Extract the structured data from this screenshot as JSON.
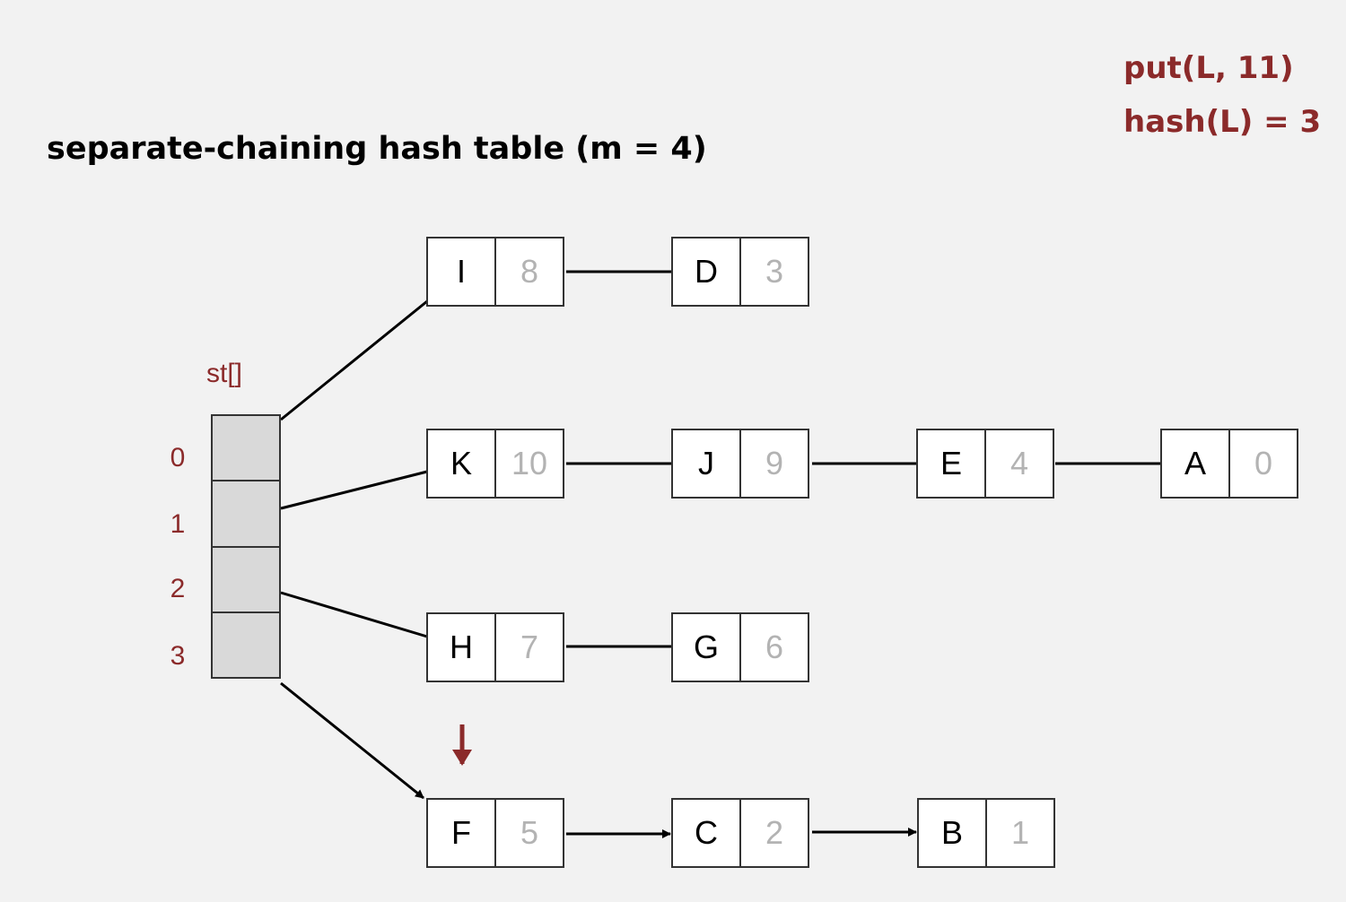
{
  "title": "separate-chaining hash table (m = 4)",
  "operation": {
    "call": "put(L, 11)",
    "hash": "hash(L) = 3"
  },
  "array_label": "st[]",
  "indices": [
    "0",
    "1",
    "2",
    "3"
  ],
  "chains": [
    {
      "index": "0",
      "nodes": [
        {
          "key": "I",
          "value": "8"
        },
        {
          "key": "D",
          "value": "3"
        }
      ]
    },
    {
      "index": "1",
      "nodes": [
        {
          "key": "K",
          "value": "10"
        },
        {
          "key": "J",
          "value": "9"
        },
        {
          "key": "E",
          "value": "4"
        },
        {
          "key": "A",
          "value": "0"
        }
      ]
    },
    {
      "index": "2",
      "nodes": [
        {
          "key": "H",
          "value": "7"
        },
        {
          "key": "G",
          "value": "6"
        }
      ]
    },
    {
      "index": "3",
      "nodes": [
        {
          "key": "F",
          "value": "5"
        },
        {
          "key": "C",
          "value": "2"
        },
        {
          "key": "B",
          "value": "1"
        }
      ]
    }
  ],
  "colors": {
    "accent": "#8b2a2a",
    "value_text": "#b3b3b3",
    "array_fill": "#d9d9d9",
    "background": "#f2f2f2"
  }
}
